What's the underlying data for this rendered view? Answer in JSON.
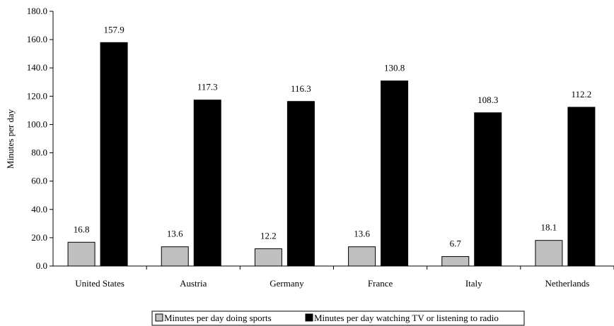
{
  "chart_data": {
    "type": "bar",
    "categories": [
      "United States",
      "Austria",
      "Germany",
      "France",
      "Italy",
      "Netherlands"
    ],
    "series": [
      {
        "name": "Minutes per day doing sports",
        "values": [
          16.8,
          13.6,
          12.2,
          13.6,
          6.7,
          18.1
        ],
        "color": "#c0c0c0"
      },
      {
        "name": "Minutes per day watching TV or listening to radio",
        "values": [
          157.9,
          117.3,
          116.3,
          130.8,
          108.3,
          112.2
        ],
        "color": "#000000"
      }
    ],
    "data_labels": [
      [
        "16.8",
        "13.6",
        "12.2",
        "13.6",
        "6.7",
        "18.1"
      ],
      [
        "157.9",
        "117.3",
        "116.3",
        "130.8",
        "108.3",
        "112.2"
      ]
    ],
    "ylabel": "Minutes per day",
    "ylim": [
      0,
      180
    ],
    "yticks": [
      "0.0",
      "20.0",
      "40.0",
      "60.0",
      "80.0",
      "100.0",
      "120.0",
      "140.0",
      "160.0",
      "180.0"
    ],
    "ytick_values": [
      0,
      20,
      40,
      60,
      80,
      100,
      120,
      140,
      160,
      180
    ],
    "legend_position": "bottom",
    "grid": false
  }
}
